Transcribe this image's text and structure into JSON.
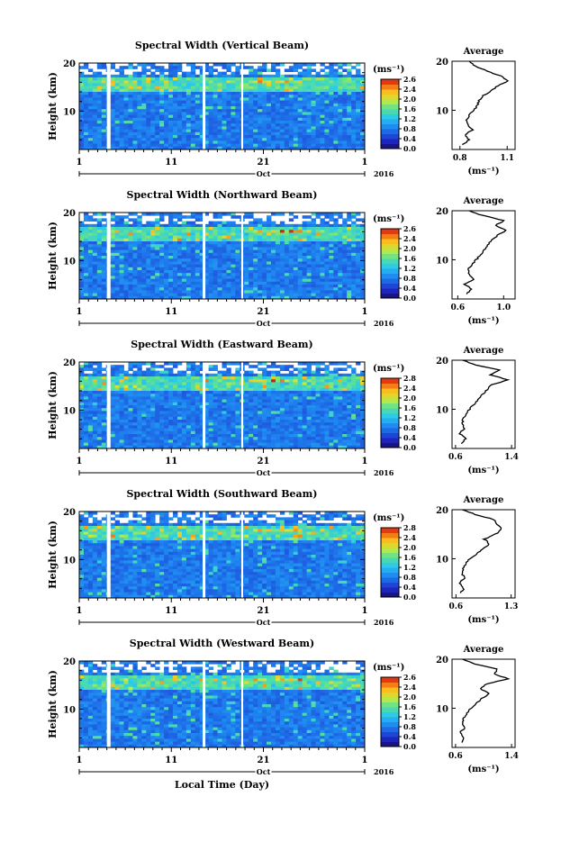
{
  "chart_data": [
    {
      "type": "heatmap",
      "title": "Spectral Width (Vertical Beam)",
      "ylabel": "Height (km)",
      "ylim": [
        2,
        20
      ],
      "yticks": [
        "20",
        "10"
      ],
      "xticks": [
        "1",
        "11",
        "21",
        "1"
      ],
      "xlim_days": [
        1,
        32
      ],
      "month_label": "Oct",
      "year_label": "2016",
      "colorbar_unit": "(ms⁻¹)",
      "colorbar_ticks": [
        "2.6",
        "2.4",
        "2.0",
        "1.6",
        "1.2",
        "0.8",
        "0.4",
        "0.0"
      ],
      "colorbar_range": [
        0.0,
        2.8
      ],
      "data_gaps_days": [
        [
          4.0,
          4.4
        ],
        [
          14.4,
          14.7
        ],
        [
          18.6,
          18.8
        ]
      ],
      "profile": {
        "title": "Average",
        "xlabel": "(ms⁻¹)",
        "xticks": [
          "0.8",
          "1.1"
        ],
        "xlim": [
          0.75,
          1.15
        ],
        "yticks": [
          "20",
          "10"
        ],
        "heights": [
          3,
          4,
          5,
          6,
          7,
          8,
          9,
          10,
          11,
          12,
          13,
          14,
          15,
          16,
          17,
          18,
          19,
          20
        ],
        "values": [
          0.82,
          0.86,
          0.83,
          0.88,
          0.85,
          0.84,
          0.86,
          0.89,
          0.91,
          0.92,
          0.95,
          1.0,
          1.04,
          1.11,
          1.06,
          0.97,
          0.9,
          0.86
        ]
      }
    },
    {
      "type": "heatmap",
      "title": "Spectral Width (Northward Beam)",
      "ylabel": "Height (km)",
      "ylim": [
        2,
        20
      ],
      "yticks": [
        "20",
        "10"
      ],
      "xticks": [
        "1",
        "11",
        "21",
        "1"
      ],
      "xlim_days": [
        1,
        32
      ],
      "month_label": "Oct",
      "year_label": "2016",
      "colorbar_unit": "(ms⁻¹)",
      "colorbar_ticks": [
        "2.6",
        "2.4",
        "2.0",
        "1.6",
        "1.2",
        "0.8",
        "0.4",
        "0.0"
      ],
      "colorbar_range": [
        0.0,
        2.8
      ],
      "data_gaps_days": [
        [
          4.0,
          4.4
        ],
        [
          14.4,
          14.7
        ],
        [
          18.6,
          18.8
        ]
      ],
      "profile": {
        "title": "Average",
        "xlabel": "(ms⁻¹)",
        "xticks": [
          "0.6",
          "1.0"
        ],
        "xlim": [
          0.55,
          1.1
        ],
        "yticks": [
          "20",
          "10"
        ],
        "heights": [
          3,
          4,
          5,
          6,
          7,
          8,
          9,
          10,
          11,
          12,
          13,
          14,
          15,
          16,
          17,
          18,
          19,
          20
        ],
        "values": [
          0.68,
          0.72,
          0.66,
          0.74,
          0.7,
          0.69,
          0.72,
          0.76,
          0.8,
          0.83,
          0.86,
          0.9,
          0.95,
          1.02,
          0.93,
          1.0,
          0.82,
          0.7
        ]
      }
    },
    {
      "type": "heatmap",
      "title": "Spectral Width (Eastward Beam)",
      "ylabel": "Height (km)",
      "ylim": [
        2,
        20
      ],
      "yticks": [
        "20",
        "10"
      ],
      "xticks": [
        "1",
        "11",
        "21",
        "1"
      ],
      "xlim_days": [
        1,
        32
      ],
      "month_label": "Oct",
      "year_label": "2016",
      "colorbar_unit": "(ms⁻¹)",
      "colorbar_ticks": [
        "2.8",
        "2.4",
        "2.0",
        "1.6",
        "1.2",
        "0.8",
        "0.4",
        "0.0"
      ],
      "colorbar_range": [
        0.0,
        2.8
      ],
      "data_gaps_days": [
        [
          4.0,
          4.4
        ],
        [
          14.4,
          14.7
        ],
        [
          18.6,
          18.8
        ]
      ],
      "profile": {
        "title": "Average",
        "xlabel": "(ms⁻¹)",
        "xticks": [
          "0.6",
          "1.4"
        ],
        "xlim": [
          0.55,
          1.45
        ],
        "yticks": [
          "20",
          "10"
        ],
        "heights": [
          3,
          4,
          5,
          6,
          7,
          8,
          9,
          10,
          11,
          12,
          13,
          14,
          15,
          16,
          17,
          18,
          19,
          20
        ],
        "values": [
          0.68,
          0.74,
          0.66,
          0.72,
          0.7,
          0.71,
          0.75,
          0.8,
          0.86,
          0.92,
          0.98,
          1.05,
          1.12,
          1.35,
          1.1,
          1.22,
          0.9,
          0.7
        ]
      }
    },
    {
      "type": "heatmap",
      "title": "Spectral Width (Southward Beam)",
      "ylabel": "Height (km)",
      "ylim": [
        2,
        20
      ],
      "yticks": [
        "20",
        "10"
      ],
      "xticks": [
        "1",
        "11",
        "21",
        "1"
      ],
      "xlim_days": [
        1,
        32
      ],
      "month_label": "Oct",
      "year_label": "2016",
      "colorbar_unit": "(ms⁻¹)",
      "colorbar_ticks": [
        "2.8",
        "2.4",
        "2.0",
        "1.6",
        "1.2",
        "0.8",
        "0.4",
        "0.0"
      ],
      "colorbar_range": [
        0.0,
        2.8
      ],
      "data_gaps_days": [
        [
          4.0,
          4.4
        ],
        [
          14.4,
          14.7
        ],
        [
          18.6,
          18.8
        ]
      ],
      "profile": {
        "title": "Average",
        "xlabel": "(ms⁻¹)",
        "xticks": [
          "0.6",
          "1.3"
        ],
        "xlim": [
          0.55,
          1.35
        ],
        "yticks": [
          "20",
          "10"
        ],
        "heights": [
          3,
          4,
          5,
          6,
          7,
          8,
          9,
          10,
          11,
          12,
          13,
          14,
          15,
          16,
          17,
          18,
          19,
          20
        ],
        "values": [
          0.66,
          0.7,
          0.64,
          0.71,
          0.68,
          0.69,
          0.72,
          0.78,
          0.86,
          0.95,
          1.02,
          0.96,
          1.1,
          1.18,
          1.12,
          1.08,
          0.85,
          0.68
        ]
      }
    },
    {
      "type": "heatmap",
      "title": "Spectral Width (Westward Beam)",
      "ylabel": "Height (km)",
      "ylim": [
        2,
        20
      ],
      "yticks": [
        "20",
        "10"
      ],
      "xticks": [
        "1",
        "11",
        "21",
        "1"
      ],
      "xlim_days": [
        1,
        32
      ],
      "month_label": "Oct",
      "year_label": "2016",
      "xlabel": "Local Time (Day)",
      "colorbar_unit": "(ms⁻¹)",
      "colorbar_ticks": [
        "2.6",
        "2.4",
        "2.0",
        "1.6",
        "1.2",
        "0.8",
        "0.4",
        "0.0"
      ],
      "colorbar_range": [
        0.0,
        2.8
      ],
      "data_gaps_days": [
        [
          4.0,
          4.4
        ],
        [
          14.4,
          14.7
        ],
        [
          18.6,
          18.8
        ]
      ],
      "profile": {
        "title": "Average",
        "xlabel": "(ms⁻¹)",
        "xticks": [
          "0.6",
          "1.4"
        ],
        "xlim": [
          0.55,
          1.45
        ],
        "yticks": [
          "20",
          "10"
        ],
        "heights": [
          3,
          4,
          5,
          6,
          7,
          8,
          9,
          10,
          11,
          12,
          13,
          14,
          15,
          16,
          17,
          18,
          19,
          20
        ],
        "values": [
          0.68,
          0.72,
          0.66,
          0.74,
          0.7,
          0.72,
          0.76,
          0.82,
          0.9,
          0.98,
          1.08,
          0.95,
          1.05,
          1.35,
          1.15,
          1.2,
          0.88,
          0.7
        ]
      }
    }
  ]
}
